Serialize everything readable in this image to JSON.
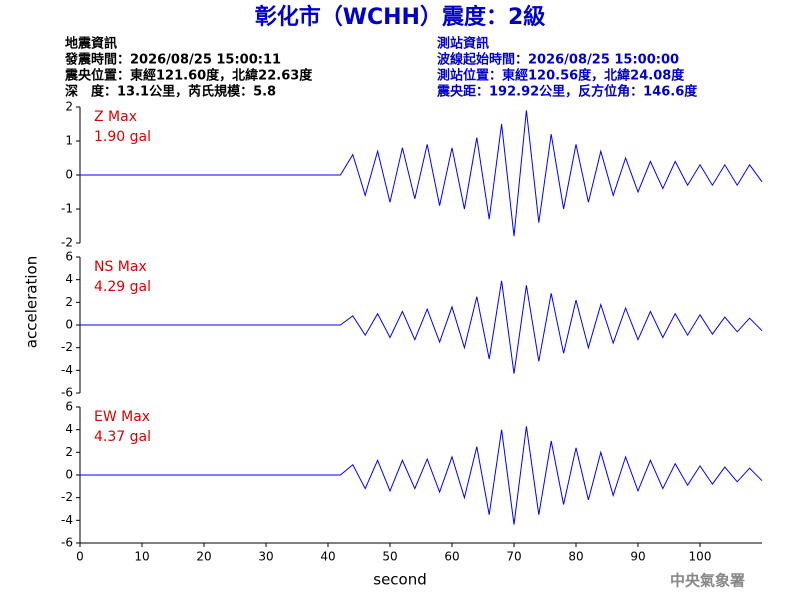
{
  "header": {
    "title": "彰化市（WCHH）震度：2級",
    "left": [
      "地震資訊",
      "發震時間：2026/08/25 15:00:11",
      "震央位置：東經121.60度，北緯22.63度",
      "深　度：13.1公里，芮氏規模：5.8"
    ],
    "right": [
      "測站資訊",
      "波線起始時間：2026/08/25 15:00:00",
      "測站位置：東經120.56度，北緯24.08度",
      "震央距：192.92公里，反方位角：146.6度"
    ]
  },
  "ylabel": "acceleration",
  "xlabel": "second",
  "footer": "中央氣象署",
  "chart_data": [
    {
      "type": "line",
      "label": "Z Max",
      "annotation": "1.90 gal",
      "color": "#0000ff",
      "x": [
        0,
        2,
        4,
        6,
        8,
        10,
        12,
        14,
        16,
        18,
        20,
        22,
        24,
        26,
        28,
        30,
        32,
        34,
        36,
        38,
        40,
        42,
        44,
        46,
        48,
        50,
        52,
        54,
        56,
        58,
        60,
        62,
        64,
        66,
        68,
        70,
        72,
        74,
        76,
        78,
        80,
        82,
        84,
        86,
        88,
        90,
        92,
        94,
        96,
        98,
        100,
        102,
        104,
        106,
        108,
        110
      ],
      "values": [
        0,
        0,
        0,
        0,
        0,
        0,
        0,
        0,
        0,
        0,
        0,
        0,
        0,
        0,
        0,
        0,
        0,
        0,
        0,
        0,
        0,
        0,
        0.6,
        -0.6,
        0.7,
        -0.8,
        0.8,
        -0.7,
        0.9,
        -0.9,
        0.8,
        -1.0,
        1.1,
        -1.3,
        1.5,
        -1.8,
        1.9,
        -1.4,
        1.2,
        -1.0,
        0.9,
        -0.8,
        0.7,
        -0.6,
        0.5,
        -0.5,
        0.4,
        -0.4,
        0.4,
        -0.3,
        0.3,
        -0.3,
        0.3,
        -0.3,
        0.3,
        -0.2
      ],
      "xlim": [
        0,
        110
      ],
      "ylim": [
        -2,
        2
      ],
      "yticks": [
        -2,
        -1,
        0,
        1,
        2
      ]
    },
    {
      "type": "line",
      "label": "NS Max",
      "annotation": "4.29 gal",
      "color": "#0000ff",
      "x": [
        0,
        2,
        4,
        6,
        8,
        10,
        12,
        14,
        16,
        18,
        20,
        22,
        24,
        26,
        28,
        30,
        32,
        34,
        36,
        38,
        40,
        42,
        44,
        46,
        48,
        50,
        52,
        54,
        56,
        58,
        60,
        62,
        64,
        66,
        68,
        70,
        72,
        74,
        76,
        78,
        80,
        82,
        84,
        86,
        88,
        90,
        92,
        94,
        96,
        98,
        100,
        102,
        104,
        106,
        108,
        110
      ],
      "values": [
        0,
        0,
        0,
        0,
        0,
        0,
        0,
        0,
        0,
        0,
        0,
        0,
        0,
        0,
        0,
        0,
        0,
        0,
        0,
        0,
        0,
        0,
        0.8,
        -0.9,
        1.0,
        -1.1,
        1.2,
        -1.3,
        1.4,
        -1.5,
        1.6,
        -2.0,
        2.5,
        -3.0,
        3.9,
        -4.3,
        3.5,
        -3.2,
        2.8,
        -2.5,
        2.2,
        -2.0,
        1.8,
        -1.6,
        1.5,
        -1.3,
        1.2,
        -1.1,
        1.0,
        -0.9,
        0.9,
        -0.8,
        0.7,
        -0.6,
        0.6,
        -0.5
      ],
      "xlim": [
        0,
        110
      ],
      "ylim": [
        -6,
        6
      ],
      "yticks": [
        -6,
        -4,
        -2,
        0,
        2,
        4,
        6
      ]
    },
    {
      "type": "line",
      "label": "EW Max",
      "annotation": "4.37 gal",
      "color": "#0000ff",
      "x": [
        0,
        2,
        4,
        6,
        8,
        10,
        12,
        14,
        16,
        18,
        20,
        22,
        24,
        26,
        28,
        30,
        32,
        34,
        36,
        38,
        40,
        42,
        44,
        46,
        48,
        50,
        52,
        54,
        56,
        58,
        60,
        62,
        64,
        66,
        68,
        70,
        72,
        74,
        76,
        78,
        80,
        82,
        84,
        86,
        88,
        90,
        92,
        94,
        96,
        98,
        100,
        102,
        104,
        106,
        108,
        110
      ],
      "values": [
        0,
        0,
        0,
        0,
        0,
        0,
        0,
        0,
        0,
        0,
        0,
        0,
        0,
        0,
        0,
        0,
        0,
        0,
        0,
        0,
        0,
        0,
        0.9,
        -1.2,
        1.3,
        -1.4,
        1.3,
        -1.2,
        1.4,
        -1.5,
        1.6,
        -2.0,
        2.5,
        -3.5,
        4.0,
        -4.37,
        4.3,
        -3.5,
        3.0,
        -2.6,
        2.4,
        -2.2,
        2.0,
        -1.8,
        1.6,
        -1.4,
        1.3,
        -1.2,
        1.0,
        -0.9,
        0.8,
        -0.8,
        0.7,
        -0.6,
        0.6,
        -0.5
      ],
      "xlim": [
        0,
        110
      ],
      "ylim": [
        -6,
        6
      ],
      "yticks": [
        -6,
        -4,
        -2,
        0,
        2,
        4,
        6
      ],
      "xticks": [
        0,
        10,
        20,
        30,
        40,
        50,
        60,
        70,
        80,
        90,
        100
      ]
    }
  ]
}
